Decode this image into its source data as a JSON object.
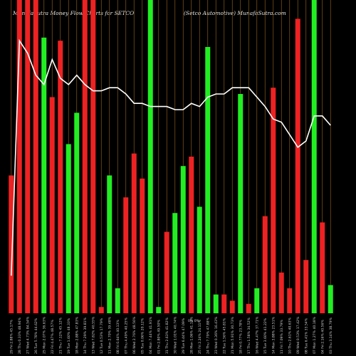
{
  "header": {
    "left_title": "MunafaSutra  Money Flow  Charts for SETCO",
    "right_title": "(Setco  Automotive) MunafaSutra.com"
  },
  "colors": {
    "background": "#000000",
    "up": "#22ee22",
    "down": "#ee2222",
    "gridline": "#8a5a1a",
    "line": "#ffffff"
  },
  "chart_data": {
    "type": "bar",
    "ylim": [
      0,
      100
    ],
    "grid": true,
    "categories": [
      "29 Fri Nov 2024",
      "28 Thu Nov 2024",
      "27 Wed Nov 2024",
      "26 Tue Nov 2024",
      "25 Mon Nov 2024",
      "22 Fri Nov 2024",
      "21 Thu Nov 2024",
      "19 Tue Nov 2024",
      "18 Mon Nov 2024",
      "14 Thu Nov 2024",
      "13 Wed Nov 2024",
      "12 Tue Nov 2024",
      "11 Mon Nov 2024",
      "08 Fri Nov 2024",
      "07 Thu Nov 2024",
      "06 Wed Nov 2024",
      "05 Tue Nov 2024",
      "04 Mon Nov 2024",
      "01 Fri Nov 2024",
      "31 Thu Oct 2024",
      "30 Wed Oct 2024",
      "29 Tue Oct 2024",
      "28 Mon Oct 2024",
      "25 Fri Oct 2024",
      "24 Thu Oct 2024",
      "23 Wed Oct 2024",
      "22 Tue Oct 2024",
      "21 Mon Oct 2024",
      "18 Fri Oct 2024",
      "17 Thu Oct 2024",
      "16 Wed Oct 2024",
      "15 Tue Oct 2024",
      "14 Mon Oct 2024",
      "11 Fri Oct 2024",
      "10 Thu Oct 2024",
      "09 Wed Oct 2024",
      "08 Tue Oct 2024",
      "07 Mon Oct 2024",
      "04 Fri Oct 2024",
      "03 Thu Oct 2024"
    ],
    "x_labels": [
      "29 Fri 2.88% 45.17%",
      "28 Thu 0.33% 48.94%",
      "27 Wed 4.73% 84.54%",
      "26 Tue 5.78% 44.62%",
      "25 Mon 2.07% 36.63%",
      "22 Fri 4.47% 48.57%",
      "21 Thu 7.12% 45.12%",
      "19 Tue 1.60% 48.33%",
      "18 Mon 2.88% 47.83%",
      "14 Thu 7.29% 39.81%",
      "13 Wed 7.82% 40.55%",
      "12 Tue 0.53% 17.79%",
      "11 Mon 2.70% 39.48%",
      "08 Fri 0.64% 40.13%",
      "07 Thu 4.49% 40.25%",
      "06 Wed 2.76% 48.56%",
      "05 Tue 0.06% 20.12%",
      "04 Mon 7.44% 41.91%",
      "01 Fri 2.80% 49.50%",
      "31 Thu 2.63% 41.82%",
      "30 Wed 1.01% 40.74%",
      "29 Tue 6.44% 47.09%",
      "28 Mon 1.06% 41.12%",
      "25 Fri 2.24% 24.11%",
      "24 Thu 7.79% 47.88%",
      "23 Wed 0.36% 16.43%",
      "22 Tue 1.56% 45.81%",
      "21 Mon 5.91% 30.73%",
      "18 Fri 0.77% 23.78%",
      "17 Thu 1.58% 34.52%",
      "16 Wed 4.47% 37.71%",
      "15 Tue 3.60% 41.22%",
      "14 Mon 3.88% 23.51%",
      "11 Fri 7.09% 33.79%",
      "10 Thu 2.61% 40.63%",
      "09 Wed 0.53% 17.42%",
      "08 Tue 6.41% 33.54%",
      "07 Mon 1.27% 40.18%",
      "04 Fri 2.16% 40.56%",
      "03 Thu 3.14% 38.79%"
    ],
    "mid_label": "0%   0%",
    "series": [
      {
        "values": [
          44,
          100,
          100,
          100,
          88,
          69,
          87,
          54,
          64,
          100,
          100,
          2,
          44,
          8,
          37,
          51,
          43,
          100,
          2,
          26,
          32,
          47,
          50,
          34,
          85,
          6,
          6,
          4,
          70,
          3,
          8,
          31,
          72,
          13,
          8,
          94,
          17,
          100,
          29,
          9
        ],
        "colors": [
          "down",
          "down",
          "down",
          "down",
          "up",
          "down",
          "down",
          "up",
          "up",
          "down",
          "down",
          "down",
          "up",
          "up",
          "down",
          "down",
          "down",
          "up",
          "up",
          "down",
          "up",
          "up",
          "down",
          "up",
          "up",
          "up",
          "down",
          "down",
          "up",
          "down",
          "up",
          "down",
          "down",
          "down",
          "down",
          "down",
          "down",
          "up",
          "down",
          "up"
        ]
      },
      {
        "values": [
          12,
          87,
          83,
          76,
          73,
          81,
          75,
          73,
          76,
          73,
          71,
          71,
          72,
          72,
          70,
          67,
          67,
          66,
          66,
          66,
          65,
          65,
          67,
          66,
          69,
          70,
          70,
          72,
          72,
          72,
          69,
          66,
          62,
          61,
          57,
          53,
          55,
          63,
          63,
          60
        ]
      }
    ]
  }
}
